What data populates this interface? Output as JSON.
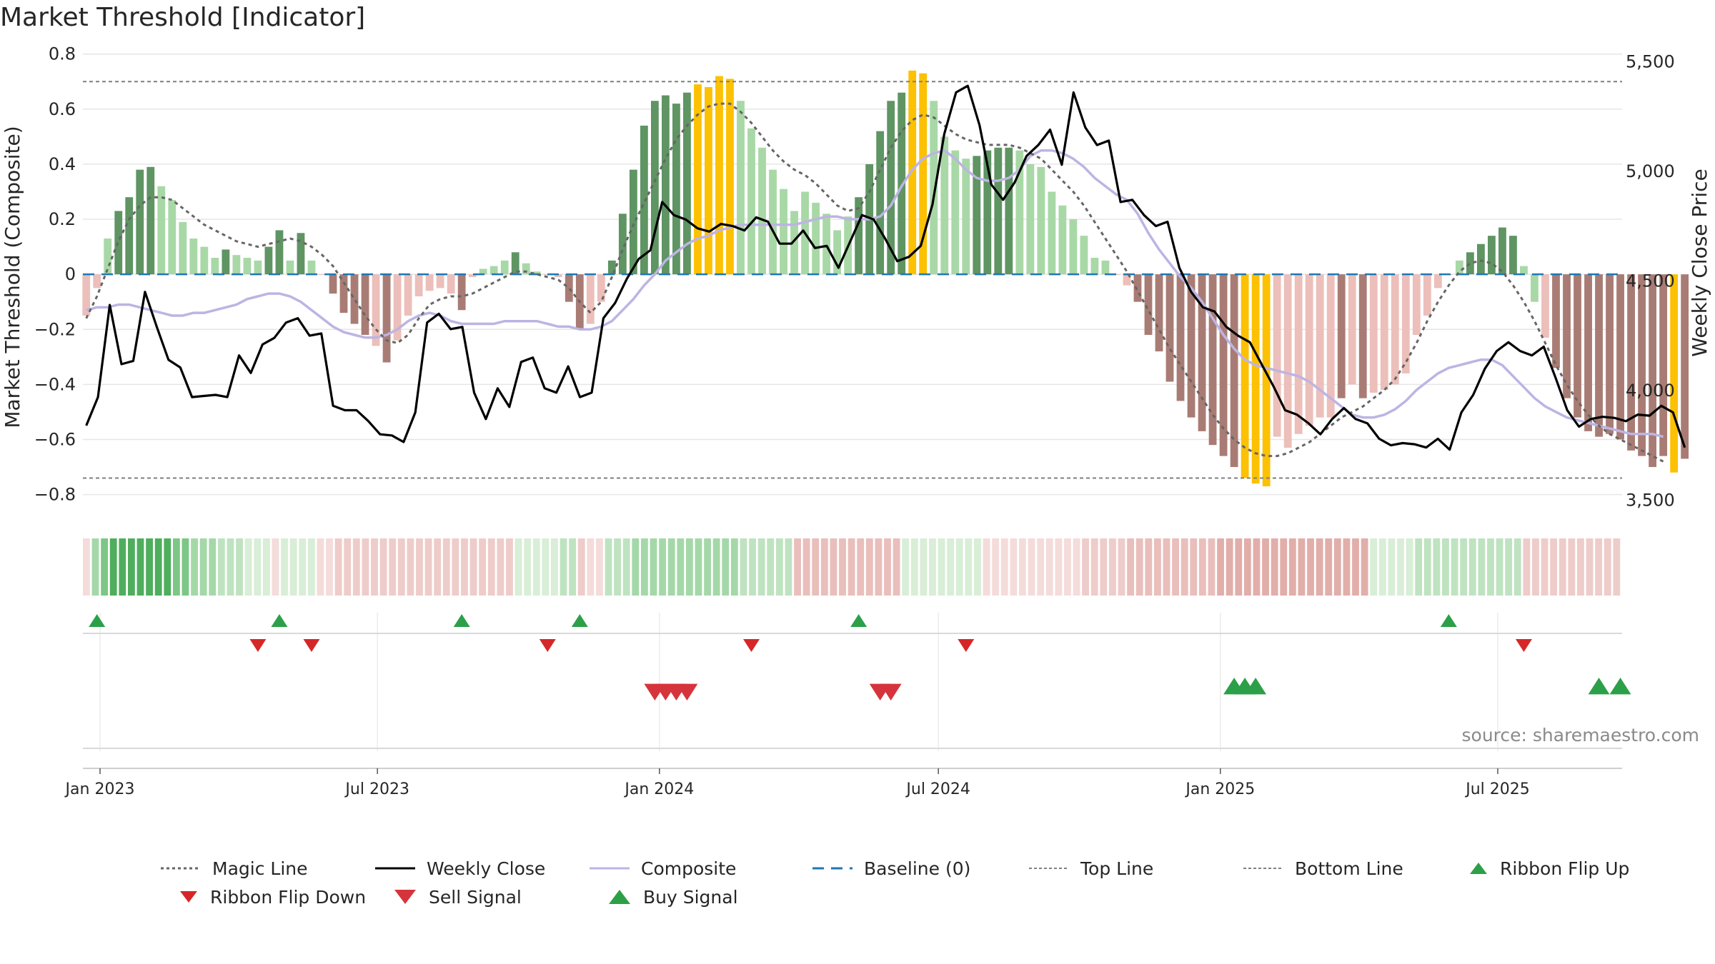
{
  "title": "Market Threshold [Indicator]",
  "source_text": "source: sharemaestro.com",
  "colors": {
    "bar_pos_strong": "#5f9463",
    "bar_pos_weak": "#a9d8a7",
    "bar_neg_strong": "#a87c74",
    "bar_neg_weak": "#ecbfba",
    "bar_extreme": "#fcc102",
    "weekly_close": "#000000",
    "composite": "#bdb4e3",
    "magic_line": "#666666",
    "baseline": "#1f77b4",
    "threshold_line": "#7f7f7f",
    "buy": "#2ca048",
    "sell": "#d6343c",
    "flip_down": "#d62728",
    "ribbon_pos": [
      "#d8eed6",
      "#bfe3c0",
      "#a4d8a8",
      "#7cc785",
      "#4fae5d"
    ],
    "ribbon_neg": [
      "#f4dcda",
      "#eeccc9",
      "#e9bebb",
      "#e2aeaa",
      "#dba09c"
    ]
  },
  "chart_data": {
    "type": "bar",
    "title": "Market Threshold [Indicator]",
    "x_tick_labels": [
      "Jan 2023",
      "Jul 2023",
      "Jan 2024",
      "Jul 2024",
      "Jan 2025",
      "Jul 2025"
    ],
    "x_tick_dates": [
      "2023-01-01",
      "2023-07-01",
      "2024-01-01",
      "2024-07-01",
      "2025-01-01",
      "2025-07-01"
    ],
    "start_date": "2022-12-23",
    "week_step_days": 7,
    "y_left": {
      "label": "Market Threshold (Composite)",
      "ylim": [
        -0.84,
        0.82
      ],
      "ticks": [
        0.8,
        0.6,
        0.4,
        0.2,
        0,
        -0.2,
        -0.4,
        -0.6,
        -0.8
      ],
      "tick_labels": [
        "0.8",
        "0.6",
        "0.4",
        "0.2",
        "0",
        "−0.2",
        "−0.4",
        "−0.6",
        "−0.8"
      ]
    },
    "y_right": {
      "label": "Weekly Close Price",
      "ylim": [
        3475,
        5560
      ],
      "ticks": [
        5500,
        5000,
        4500,
        4000,
        3500
      ],
      "tick_labels": [
        "5,500",
        "5,000",
        "4,500",
        "4,000",
        "3,500"
      ]
    },
    "top_line": 0.7,
    "bottom_line": -0.74,
    "baseline": 0,
    "composite_bars": [
      -0.15,
      -0.05,
      0.13,
      0.23,
      0.28,
      0.38,
      0.39,
      0.32,
      0.27,
      0.19,
      0.13,
      0.1,
      0.06,
      0.09,
      0.07,
      0.06,
      0.05,
      0.1,
      0.16,
      0.05,
      0.15,
      0.05,
      0,
      -0.07,
      -0.14,
      -0.18,
      -0.22,
      -0.26,
      -0.32,
      -0.24,
      -0.15,
      -0.08,
      -0.06,
      -0.05,
      -0.07,
      -0.13,
      -0.01,
      0.02,
      0.03,
      0.05,
      0.08,
      0.04,
      0.01,
      0,
      -0.01,
      -0.1,
      -0.2,
      -0.18,
      -0.1,
      0.05,
      0.22,
      0.38,
      0.54,
      0.63,
      0.65,
      0.62,
      0.66,
      0.69,
      0.68,
      0.72,
      0.71,
      0.63,
      0.53,
      0.46,
      0.38,
      0.31,
      0.23,
      0.3,
      0.26,
      0.22,
      0.16,
      0.21,
      0.28,
      0.4,
      0.52,
      0.63,
      0.66,
      0.74,
      0.73,
      0.63,
      0.5,
      0.45,
      0.42,
      0.43,
      0.45,
      0.46,
      0.46,
      0.45,
      0.4,
      0.39,
      0.3,
      0.25,
      0.2,
      0.14,
      0.06,
      0.05,
      0,
      -0.04,
      -0.1,
      -0.22,
      -0.28,
      -0.39,
      -0.46,
      -0.52,
      -0.57,
      -0.62,
      -0.66,
      -0.7,
      -0.74,
      -0.76,
      -0.77,
      -0.59,
      -0.63,
      -0.58,
      -0.55,
      -0.52,
      -0.52,
      -0.45,
      -0.4,
      -0.45,
      -0.43,
      -0.42,
      -0.4,
      -0.36,
      -0.22,
      -0.15,
      -0.05,
      0,
      0.05,
      0.08,
      0.11,
      0.14,
      0.17,
      0.14,
      0.03,
      -0.1,
      -0.23,
      -0.34,
      -0.45,
      -0.52,
      -0.57,
      -0.59,
      -0.58,
      -0.6,
      -0.64,
      -0.66,
      -0.7,
      -0.66,
      -0.72,
      -0.67
    ],
    "bar_type": [
      "nw",
      "nw",
      "pw",
      "ps",
      "ps",
      "ps",
      "ps",
      "pw",
      "pw",
      "pw",
      "pw",
      "pw",
      "pw",
      "ps",
      "pw",
      "pw",
      "pw",
      "ps",
      "ps",
      "pw",
      "ps",
      "pw",
      "nw",
      "ns",
      "ns",
      "ns",
      "ns",
      "nw",
      "ns",
      "nw",
      "nw",
      "nw",
      "nw",
      "nw",
      "nw",
      "ns",
      "nw",
      "pw",
      "pw",
      "pw",
      "ps",
      "pw",
      "pw",
      "nw",
      "nw",
      "ns",
      "ns",
      "nw",
      "nw",
      "ps",
      "ps",
      "ps",
      "ps",
      "ps",
      "ps",
      "ps",
      "ps",
      "ex",
      "ex",
      "ex",
      "ex",
      "pw",
      "pw",
      "pw",
      "pw",
      "pw",
      "pw",
      "pw",
      "pw",
      "pw",
      "pw",
      "pw",
      "ps",
      "ps",
      "ps",
      "ps",
      "ps",
      "ex",
      "ex",
      "pw",
      "pw",
      "pw",
      "pw",
      "ps",
      "ps",
      "ps",
      "ps",
      "pw",
      "pw",
      "pw",
      "pw",
      "pw",
      "pw",
      "pw",
      "pw",
      "pw",
      "nw",
      "nw",
      "ns",
      "ns",
      "ns",
      "ns",
      "ns",
      "ns",
      "ns",
      "ns",
      "ns",
      "ns",
      "ex",
      "ex",
      "ex",
      "nw",
      "nw",
      "nw",
      "nw",
      "nw",
      "nw",
      "ns",
      "nw",
      "ns",
      "nw",
      "nw",
      "nw",
      "nw",
      "nw",
      "nw",
      "nw",
      "nw",
      "pw",
      "ps",
      "ps",
      "ps",
      "ps",
      "ps",
      "pw",
      "pw",
      "nw",
      "ns",
      "ns",
      "ns",
      "ns",
      "ns",
      "ns",
      "ns",
      "ns",
      "ns",
      "ns",
      "ns",
      "ex",
      "ns",
      "ex",
      "nw"
    ],
    "magic_line": [
      -0.16,
      -0.08,
      0.02,
      0.12,
      0.2,
      0.25,
      0.28,
      0.28,
      0.27,
      0.24,
      0.21,
      0.18,
      0.16,
      0.14,
      0.12,
      0.11,
      0.1,
      0.11,
      0.12,
      0.13,
      0.12,
      0.1,
      0.07,
      0.03,
      -0.03,
      -0.09,
      -0.15,
      -0.2,
      -0.24,
      -0.25,
      -0.22,
      -0.16,
      -0.11,
      -0.09,
      -0.08,
      -0.08,
      -0.07,
      -0.05,
      -0.03,
      -0.01,
      0.01,
      0.01,
      0,
      -0.01,
      -0.02,
      -0.05,
      -0.1,
      -0.14,
      -0.1,
      -0.01,
      0.09,
      0.18,
      0.26,
      0.34,
      0.42,
      0.49,
      0.54,
      0.58,
      0.61,
      0.62,
      0.62,
      0.59,
      0.55,
      0.5,
      0.45,
      0.41,
      0.38,
      0.36,
      0.33,
      0.29,
      0.25,
      0.23,
      0.24,
      0.3,
      0.38,
      0.46,
      0.52,
      0.56,
      0.58,
      0.57,
      0.54,
      0.51,
      0.49,
      0.48,
      0.47,
      0.47,
      0.47,
      0.46,
      0.44,
      0.42,
      0.38,
      0.34,
      0.3,
      0.25,
      0.19,
      0.13,
      0.07,
      0.01,
      -0.06,
      -0.13,
      -0.2,
      -0.27,
      -0.33,
      -0.39,
      -0.45,
      -0.51,
      -0.56,
      -0.6,
      -0.63,
      -0.65,
      -0.66,
      -0.66,
      -0.65,
      -0.63,
      -0.61,
      -0.58,
      -0.55,
      -0.52,
      -0.5,
      -0.48,
      -0.45,
      -0.42,
      -0.38,
      -0.32,
      -0.25,
      -0.17,
      -0.1,
      -0.04,
      0.01,
      0.04,
      0.05,
      0.04,
      0.01,
      -0.04,
      -0.1,
      -0.17,
      -0.25,
      -0.33,
      -0.4,
      -0.46,
      -0.51,
      -0.55,
      -0.58,
      -0.6,
      -0.62,
      -0.64,
      -0.66,
      -0.68
    ],
    "composite_line": [
      -0.13,
      -0.12,
      -0.12,
      -0.11,
      -0.11,
      -0.12,
      -0.13,
      -0.14,
      -0.15,
      -0.15,
      -0.14,
      -0.14,
      -0.13,
      -0.12,
      -0.11,
      -0.09,
      -0.08,
      -0.07,
      -0.07,
      -0.08,
      -0.1,
      -0.13,
      -0.16,
      -0.19,
      -0.21,
      -0.22,
      -0.23,
      -0.23,
      -0.22,
      -0.2,
      -0.17,
      -0.15,
      -0.14,
      -0.15,
      -0.17,
      -0.18,
      -0.18,
      -0.18,
      -0.18,
      -0.17,
      -0.17,
      -0.17,
      -0.17,
      -0.18,
      -0.19,
      -0.19,
      -0.2,
      -0.2,
      -0.19,
      -0.17,
      -0.13,
      -0.09,
      -0.04,
      0,
      0.05,
      0.08,
      0.11,
      0.13,
      0.14,
      0.16,
      0.17,
      0.18,
      0.18,
      0.18,
      0.18,
      0.18,
      0.18,
      0.19,
      0.2,
      0.21,
      0.21,
      0.2,
      0.2,
      0.2,
      0.21,
      0.25,
      0.32,
      0.38,
      0.42,
      0.44,
      0.45,
      0.42,
      0.38,
      0.35,
      0.34,
      0.34,
      0.35,
      0.38,
      0.43,
      0.45,
      0.45,
      0.44,
      0.42,
      0.39,
      0.35,
      0.32,
      0.29,
      0.27,
      0.22,
      0.15,
      0.09,
      0.04,
      -0.01,
      -0.05,
      -0.1,
      -0.16,
      -0.22,
      -0.27,
      -0.31,
      -0.33,
      -0.34,
      -0.35,
      -0.36,
      -0.37,
      -0.39,
      -0.42,
      -0.45,
      -0.48,
      -0.51,
      -0.52,
      -0.52,
      -0.51,
      -0.49,
      -0.46,
      -0.42,
      -0.39,
      -0.36,
      -0.34,
      -0.33,
      -0.32,
      -0.31,
      -0.31,
      -0.33,
      -0.37,
      -0.41,
      -0.45,
      -0.48,
      -0.5,
      -0.52,
      -0.53,
      -0.54,
      -0.55,
      -0.56,
      -0.57,
      -0.58,
      -0.58,
      -0.58,
      -0.59
    ],
    "weekly_close": [
      3840,
      3970,
      4390,
      4120,
      4135,
      4450,
      4290,
      4140,
      4105,
      3970,
      3975,
      3980,
      3970,
      4160,
      4080,
      4210,
      4240,
      4310,
      4330,
      4250,
      4260,
      3930,
      3910,
      3910,
      3860,
      3800,
      3795,
      3765,
      3900,
      4310,
      4350,
      4280,
      4290,
      3990,
      3870,
      4010,
      3925,
      4130,
      4150,
      4010,
      3990,
      4110,
      3970,
      3990,
      4330,
      4400,
      4510,
      4600,
      4640,
      4860,
      4800,
      4780,
      4740,
      4725,
      4760,
      4750,
      4730,
      4790,
      4770,
      4670,
      4670,
      4730,
      4650,
      4660,
      4560,
      4680,
      4800,
      4780,
      4690,
      4590,
      4610,
      4660,
      4850,
      5170,
      5360,
      5390,
      5210,
      4940,
      4870,
      4950,
      5070,
      5120,
      5190,
      5030,
      5360,
      5200,
      5120,
      5140,
      4860,
      4870,
      4800,
      4750,
      4770,
      4560,
      4450,
      4380,
      4360,
      4290,
      4250,
      4220,
      4120,
      4020,
      3910,
      3890,
      3850,
      3800,
      3870,
      3920,
      3870,
      3850,
      3780,
      3750,
      3760,
      3755,
      3740,
      3780,
      3730,
      3900,
      3980,
      4100,
      4180,
      4220,
      4180,
      4160,
      4200,
      4060,
      3910,
      3835,
      3870,
      3880,
      3875,
      3860,
      3890,
      3885,
      3930,
      3900,
      3740
    ],
    "ribbon_level": [
      -1,
      3,
      4,
      5,
      5,
      5,
      5,
      5,
      5,
      5,
      4,
      4,
      3,
      3,
      3,
      2,
      2,
      2,
      1,
      1,
      1,
      -1,
      1,
      1,
      1,
      1,
      -1,
      -1,
      -2,
      -2,
      -2,
      -2,
      -2,
      -2,
      -2,
      -2,
      -2,
      -2,
      -2,
      -2,
      -2,
      -2,
      -2,
      -2,
      -2,
      -2,
      -2,
      -2,
      1,
      1,
      1,
      1,
      1,
      2,
      2,
      -2,
      -1,
      -1,
      2,
      2,
      2,
      3,
      3,
      3,
      3,
      3,
      3,
      3,
      3,
      3,
      3,
      3,
      3,
      2,
      2,
      2,
      2,
      2,
      2,
      -3,
      -3,
      -3,
      -3,
      -3,
      -3,
      -3,
      -3,
      -3,
      -3,
      -3,
      -3,
      1,
      1,
      1,
      1,
      1,
      1,
      1,
      1,
      1,
      -1,
      -1,
      -1,
      -1,
      -1,
      -1,
      -1,
      -1,
      -1,
      -1,
      -1,
      -2,
      -2,
      -2,
      -2,
      -2,
      -3,
      -3,
      -3,
      -3,
      -3,
      -3,
      -3,
      -3,
      -3,
      -3,
      -4,
      -4,
      -4,
      -4,
      -4,
      -4,
      -4,
      -4,
      -4,
      -4,
      -4,
      -4,
      -4,
      -4,
      -4,
      -4,
      -4,
      1,
      1,
      1,
      1,
      1,
      2,
      2,
      2,
      2,
      2,
      2,
      2,
      2,
      2,
      2,
      2,
      2,
      -2,
      -2,
      -2,
      -2,
      -2,
      -2,
      -2,
      -2,
      -2,
      -2,
      -2
    ],
    "ribbon_flip_up_weeks": [
      1,
      18,
      35,
      46,
      72,
      127
    ],
    "ribbon_flip_down_weeks": [
      16,
      21,
      43,
      62,
      82,
      134
    ],
    "sell_signal_weeks": [
      53,
      54,
      55,
      56,
      74,
      75
    ],
    "buy_signal_weeks": [
      107,
      108,
      109,
      141,
      143
    ],
    "legend": [
      "Magic Line",
      "Weekly Close",
      "Composite",
      "Baseline (0)",
      "Top Line",
      "Bottom Line",
      "Ribbon Flip Up",
      "Ribbon Flip Down",
      "Sell Signal",
      "Buy Signal"
    ]
  }
}
